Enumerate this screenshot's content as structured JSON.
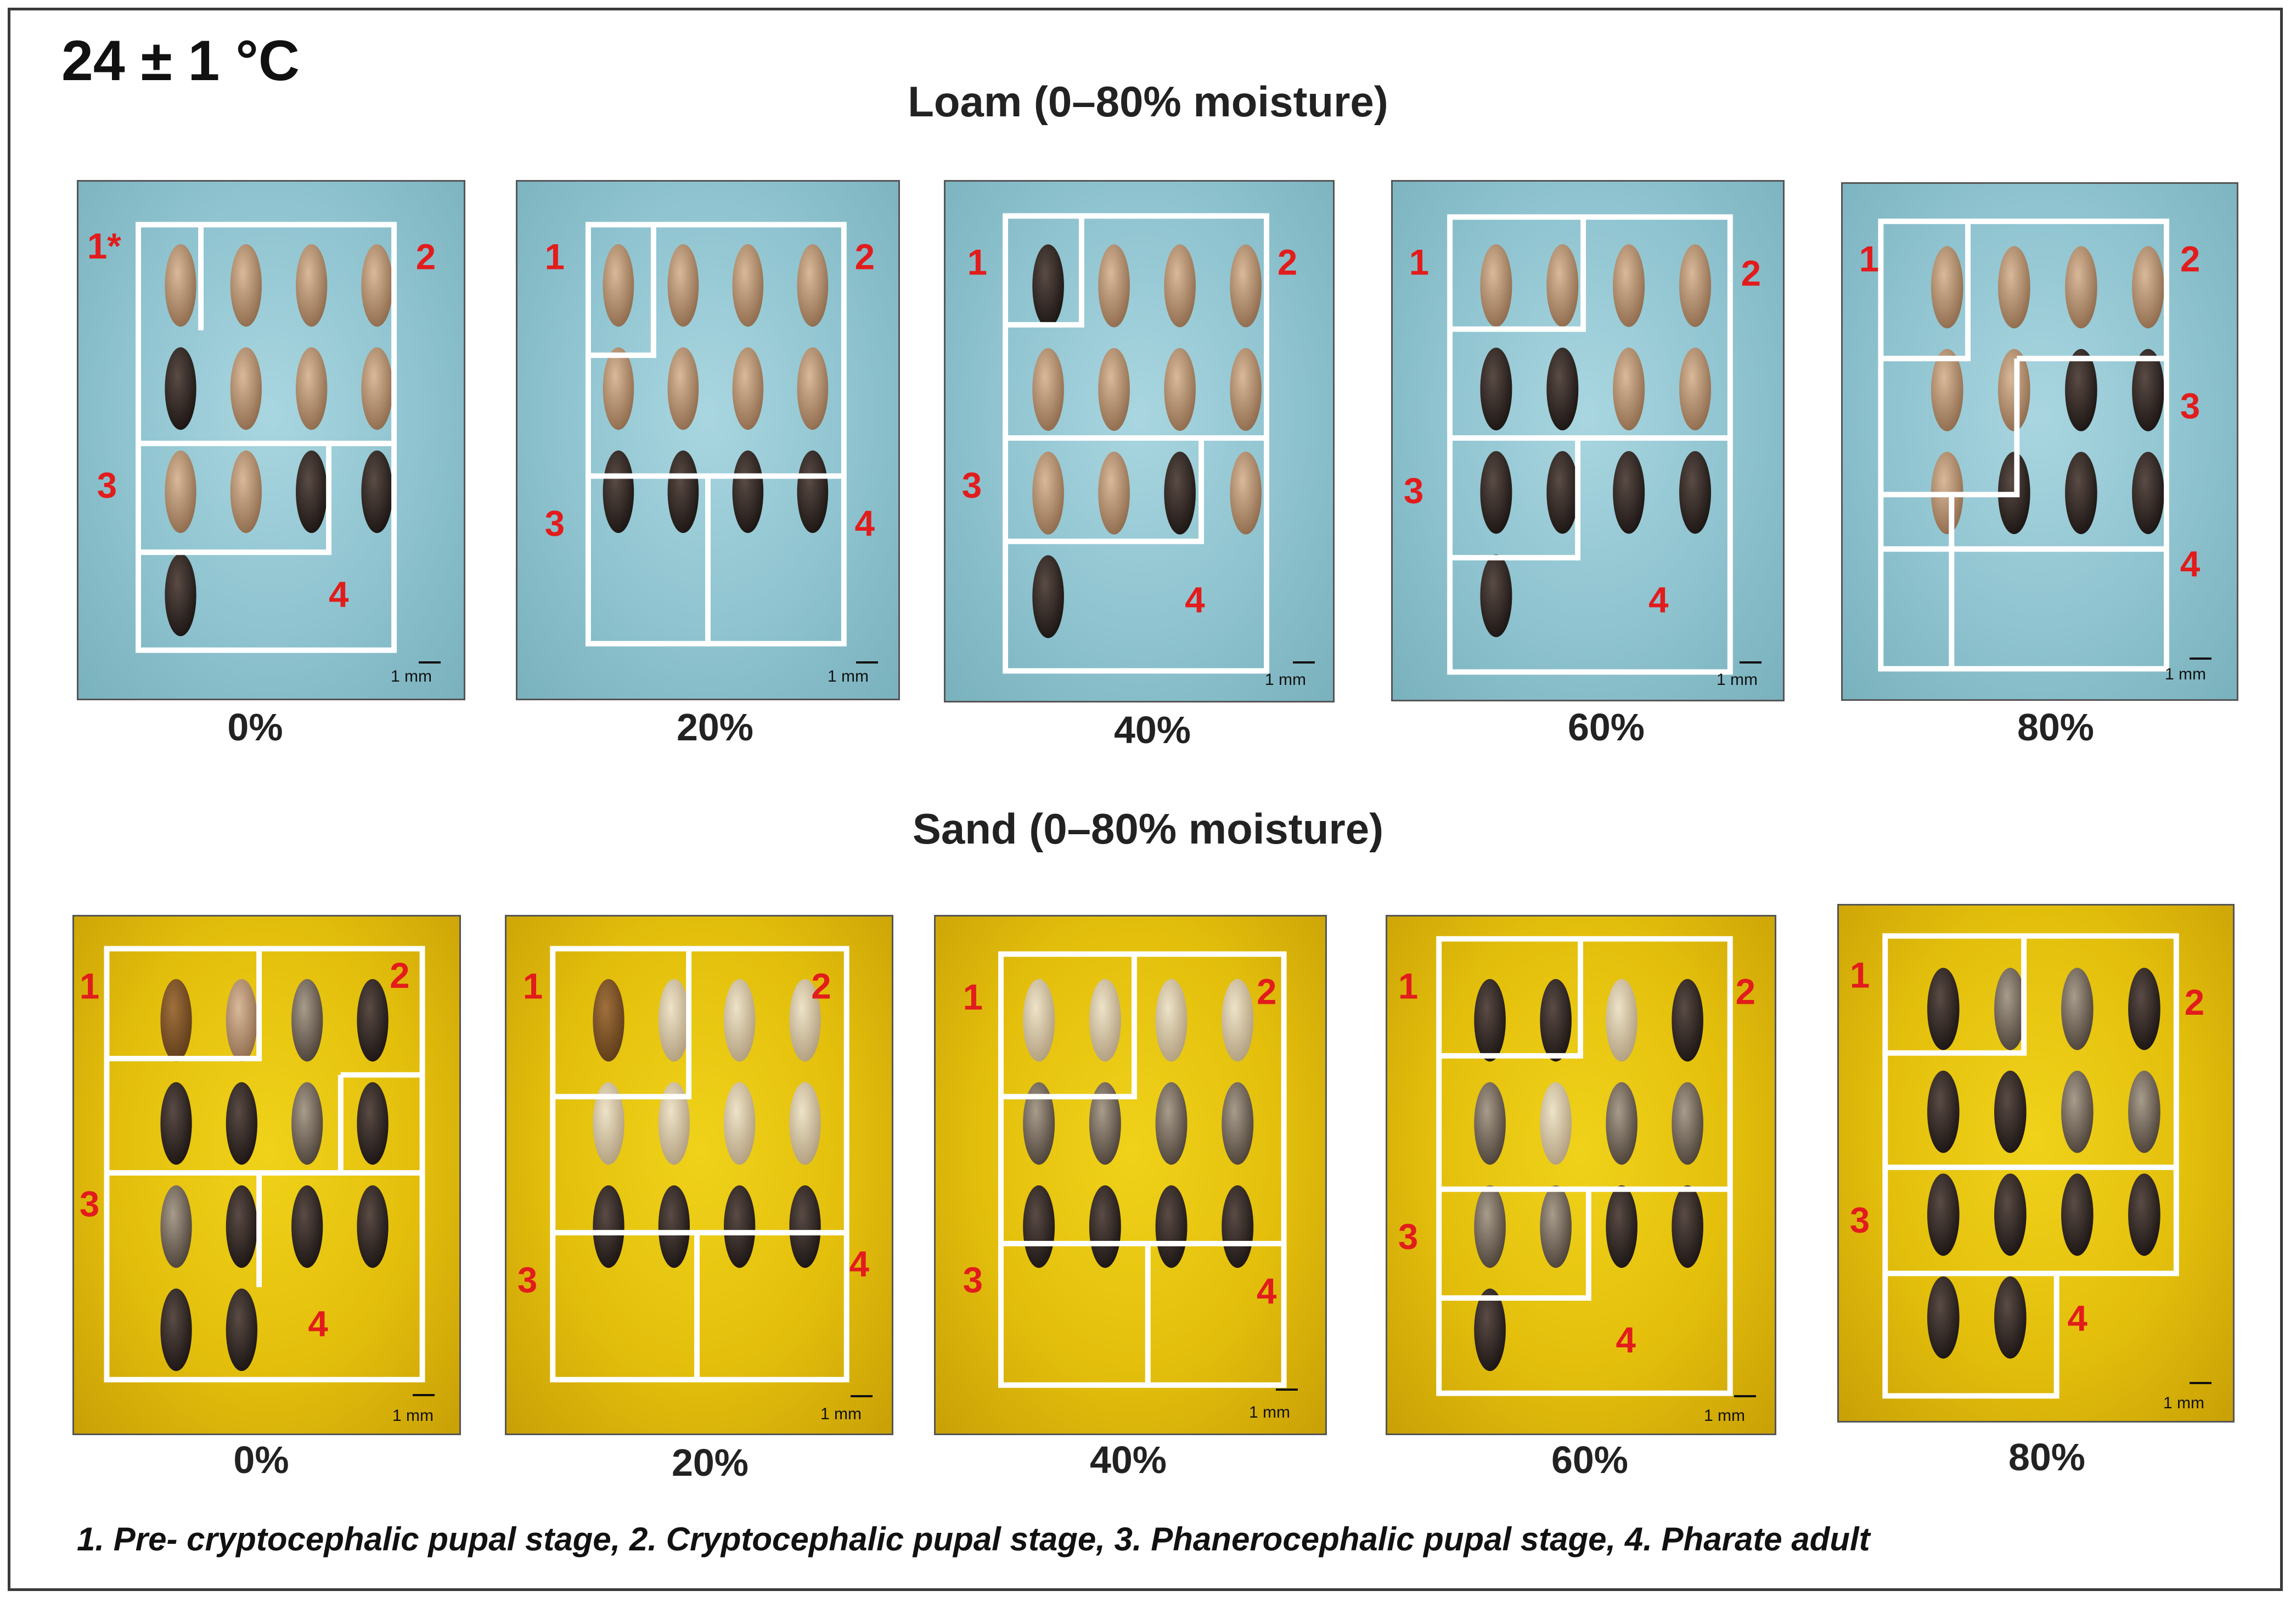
{
  "figure": {
    "temperature": "24 ± 1 °C",
    "loam_title": "Loam (0–80% moisture)",
    "sand_title": "Sand (0–80% moisture)",
    "legend": "1. Pre- cryptocephalic pupal stage,  2. Cryptocephalic pupal stage,  3. Phanerocephalic pupal stage, 4. Pharate adult",
    "scale_label": "1 mm",
    "colors": {
      "loam_bg": "#8ec3cf",
      "sand_bg": "#e3bf0c",
      "stage_label": "#e21c1c",
      "box": "#ffffff"
    },
    "loam_panels": [
      {
        "caption": "0%",
        "labels": [
          "1*",
          "2",
          "3",
          "4"
        ]
      },
      {
        "caption": "20%",
        "labels": [
          "1",
          "2",
          "3",
          "4"
        ]
      },
      {
        "caption": "40%",
        "labels": [
          "1",
          "2",
          "3",
          "4"
        ]
      },
      {
        "caption": "60%",
        "labels": [
          "1",
          "2",
          "3",
          "4"
        ]
      },
      {
        "caption": "80%",
        "labels": [
          "1",
          "2",
          "3",
          "4"
        ]
      }
    ],
    "sand_panels": [
      {
        "caption": "0%",
        "labels": [
          "1",
          "2",
          "3",
          "4"
        ]
      },
      {
        "caption": "20%",
        "labels": [
          "1",
          "2",
          "3",
          "4"
        ]
      },
      {
        "caption": "40%",
        "labels": [
          "1",
          "2",
          "3",
          "4"
        ]
      },
      {
        "caption": "60%",
        "labels": [
          "1",
          "2",
          "3",
          "4"
        ]
      },
      {
        "caption": "80%",
        "labels": [
          "1",
          "2",
          "3",
          "4"
        ]
      }
    ]
  }
}
